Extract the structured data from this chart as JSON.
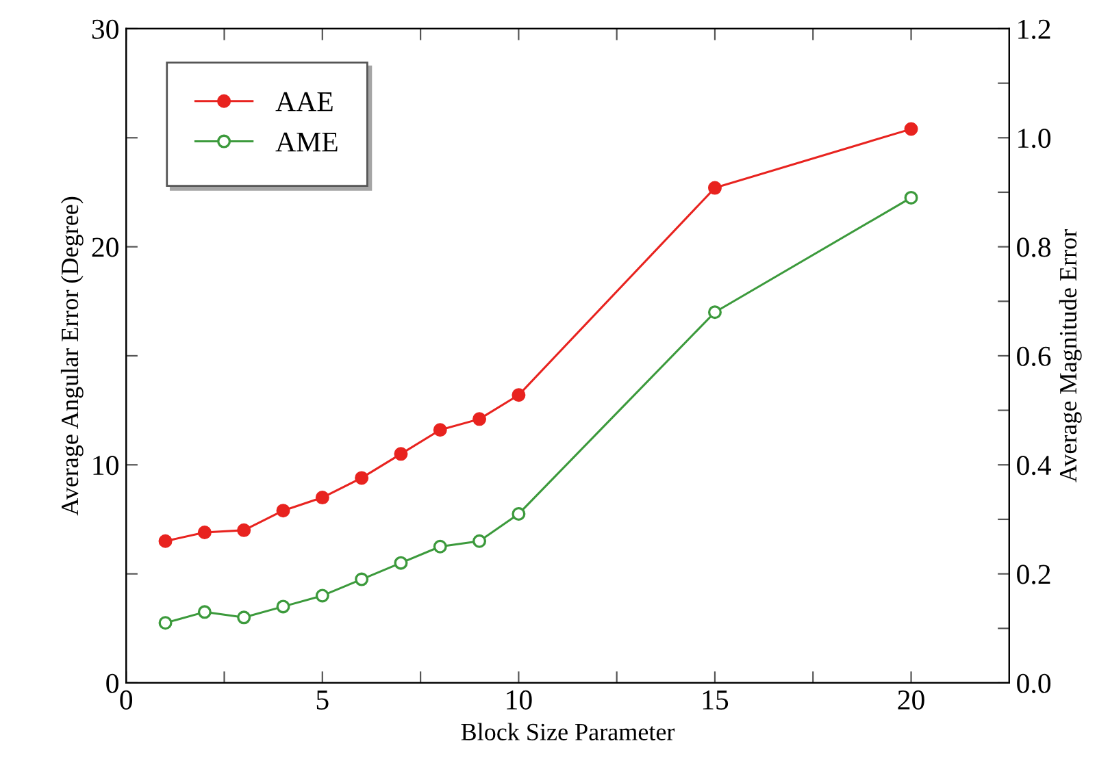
{
  "chart_data": {
    "type": "line",
    "xlabel": "Block Size Parameter",
    "ylabel": "Average Angular Error (Degree)",
    "y2label": "Average Magnitude Error",
    "x": [
      1,
      2,
      3,
      4,
      5,
      6,
      7,
      8,
      9,
      10,
      15,
      20
    ],
    "series": [
      {
        "name": "AAE",
        "color": "#e8231f",
        "marker": "circle",
        "values": [
          6.5,
          6.9,
          7.0,
          7.9,
          8.5,
          9.4,
          10.5,
          11.6,
          12.1,
          13.2,
          22.7,
          25.4
        ]
      },
      {
        "name": "AME",
        "color": "#3c9a3c",
        "marker": "circle",
        "axis": "y2",
        "values": [
          0.11,
          0.13,
          0.12,
          0.14,
          0.16,
          0.19,
          0.22,
          0.25,
          0.26,
          0.31,
          0.68,
          0.89
        ]
      }
    ],
    "xlim": [
      0,
      22.5
    ],
    "xticks": [
      0,
      {
        "value": 2.5,
        "label": null
      },
      5,
      {
        "value": 7.5,
        "label": null
      },
      10,
      {
        "value": 12.5,
        "label": null
      },
      15,
      {
        "value": 17.5,
        "label": null
      },
      20
    ],
    "ylim": [
      0,
      30
    ],
    "yticks": [
      0,
      {
        "value": 5,
        "label": null
      },
      10,
      {
        "value": 15,
        "label": null
      },
      20,
      {
        "value": 25,
        "label": null
      },
      30
    ],
    "y2lim": [
      0,
      1.2
    ],
    "y2ticks": [
      {
        "value": 0,
        "label": "0.0"
      },
      {
        "value": 0.1,
        "label": null
      },
      0.2,
      {
        "value": 0.3,
        "label": null
      },
      0.4,
      {
        "value": 0.5,
        "label": null
      },
      0.6,
      {
        "value": 0.7,
        "label": null
      },
      0.8,
      {
        "value": 0.9,
        "label": null
      },
      {
        "value": 1.0,
        "label": "1.0"
      },
      {
        "value": 1.1,
        "label": null
      },
      1.2
    ],
    "legend": "top left",
    "grid": false,
    "line_style": "solid"
  }
}
